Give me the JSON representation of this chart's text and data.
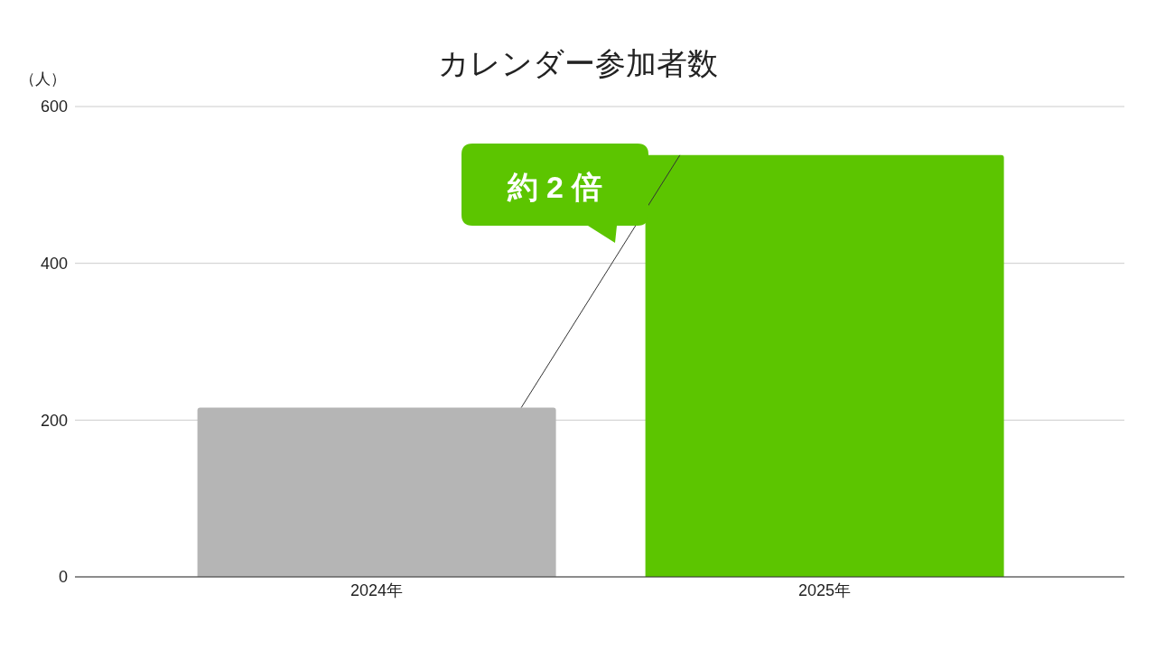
{
  "chart_data": {
    "type": "bar",
    "title": "カレンダー参加者数",
    "ylabel": "（人）",
    "categories": [
      "2024年",
      "2025年"
    ],
    "values": [
      216,
      538
    ],
    "colors": [
      "#b5b5b5",
      "#5cc500"
    ],
    "ylim": [
      0,
      600
    ],
    "yticks": [
      0,
      200,
      400,
      600
    ],
    "grid": "y",
    "annotations": [
      "約 2 倍"
    ]
  }
}
